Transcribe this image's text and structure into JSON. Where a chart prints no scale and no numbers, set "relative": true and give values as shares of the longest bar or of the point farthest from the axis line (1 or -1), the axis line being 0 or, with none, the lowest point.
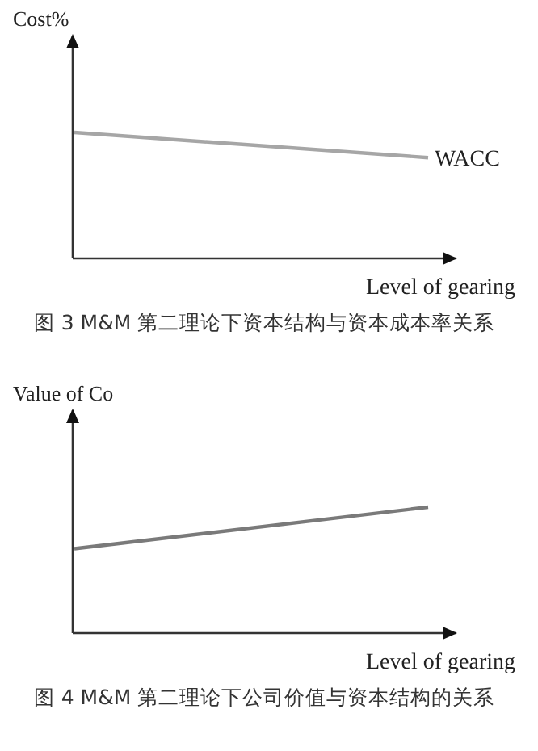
{
  "chart_data": [
    {
      "type": "line",
      "title": "图 3  M&M 第二理论下资本结构与资本成本率关系",
      "xlabel": "Level of gearing",
      "ylabel": "Cost%",
      "relative": true,
      "categories": [
        null,
        null
      ],
      "series": [
        {
          "name": "WACC",
          "color": "#a6a6a6",
          "values": [
            1,
            0.8
          ]
        }
      ]
    },
    {
      "type": "line",
      "title": "图 4  M&M 第二理论下公司价值与资本结构的关系",
      "xlabel": "Level of gearing",
      "ylabel": "Value of Co",
      "relative": true,
      "categories": [
        null,
        null
      ],
      "series": [
        {
          "color": "#7a7a7a",
          "values": [
            0.67,
            1
          ]
        }
      ]
    }
  ]
}
